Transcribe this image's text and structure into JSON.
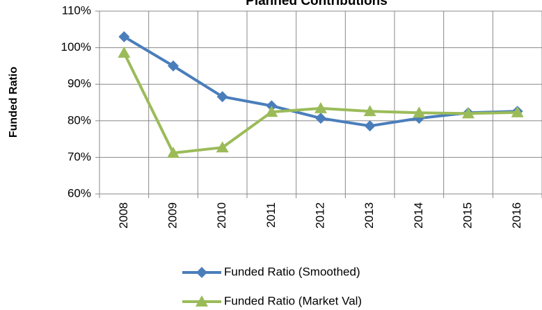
{
  "chart_data": {
    "type": "line",
    "title": "Planned Contributions",
    "y_label": "Funded Ratio",
    "categories": [
      "2008",
      "2009",
      "2010",
      "2011",
      "2012",
      "2013",
      "2014",
      "2015",
      "2016"
    ],
    "series": [
      {
        "name": "Funded Ratio (Smoothed)",
        "color": "#4a7ebb",
        "marker": "diamond",
        "values": [
          103,
          95,
          86.6,
          84.1,
          80.7,
          78.6,
          80.7,
          82.2,
          82.6
        ]
      },
      {
        "name": "Funded Ratio (Market Val)",
        "color": "#9bbb59",
        "marker": "triangle",
        "values": [
          98.6,
          71.2,
          72.7,
          82.4,
          83.4,
          82.6,
          82.2,
          82,
          82.3
        ]
      }
    ],
    "ylim": [
      60,
      110
    ],
    "yticks": [
      {
        "value": 60,
        "label": "60%"
      },
      {
        "value": 70,
        "label": "70%"
      },
      {
        "value": 80,
        "label": "80%"
      },
      {
        "value": 90,
        "label": "90%"
      },
      {
        "value": 100,
        "label": "100%"
      },
      {
        "value": 110,
        "label": "110%"
      }
    ],
    "grid": true,
    "legend": "bottom"
  }
}
